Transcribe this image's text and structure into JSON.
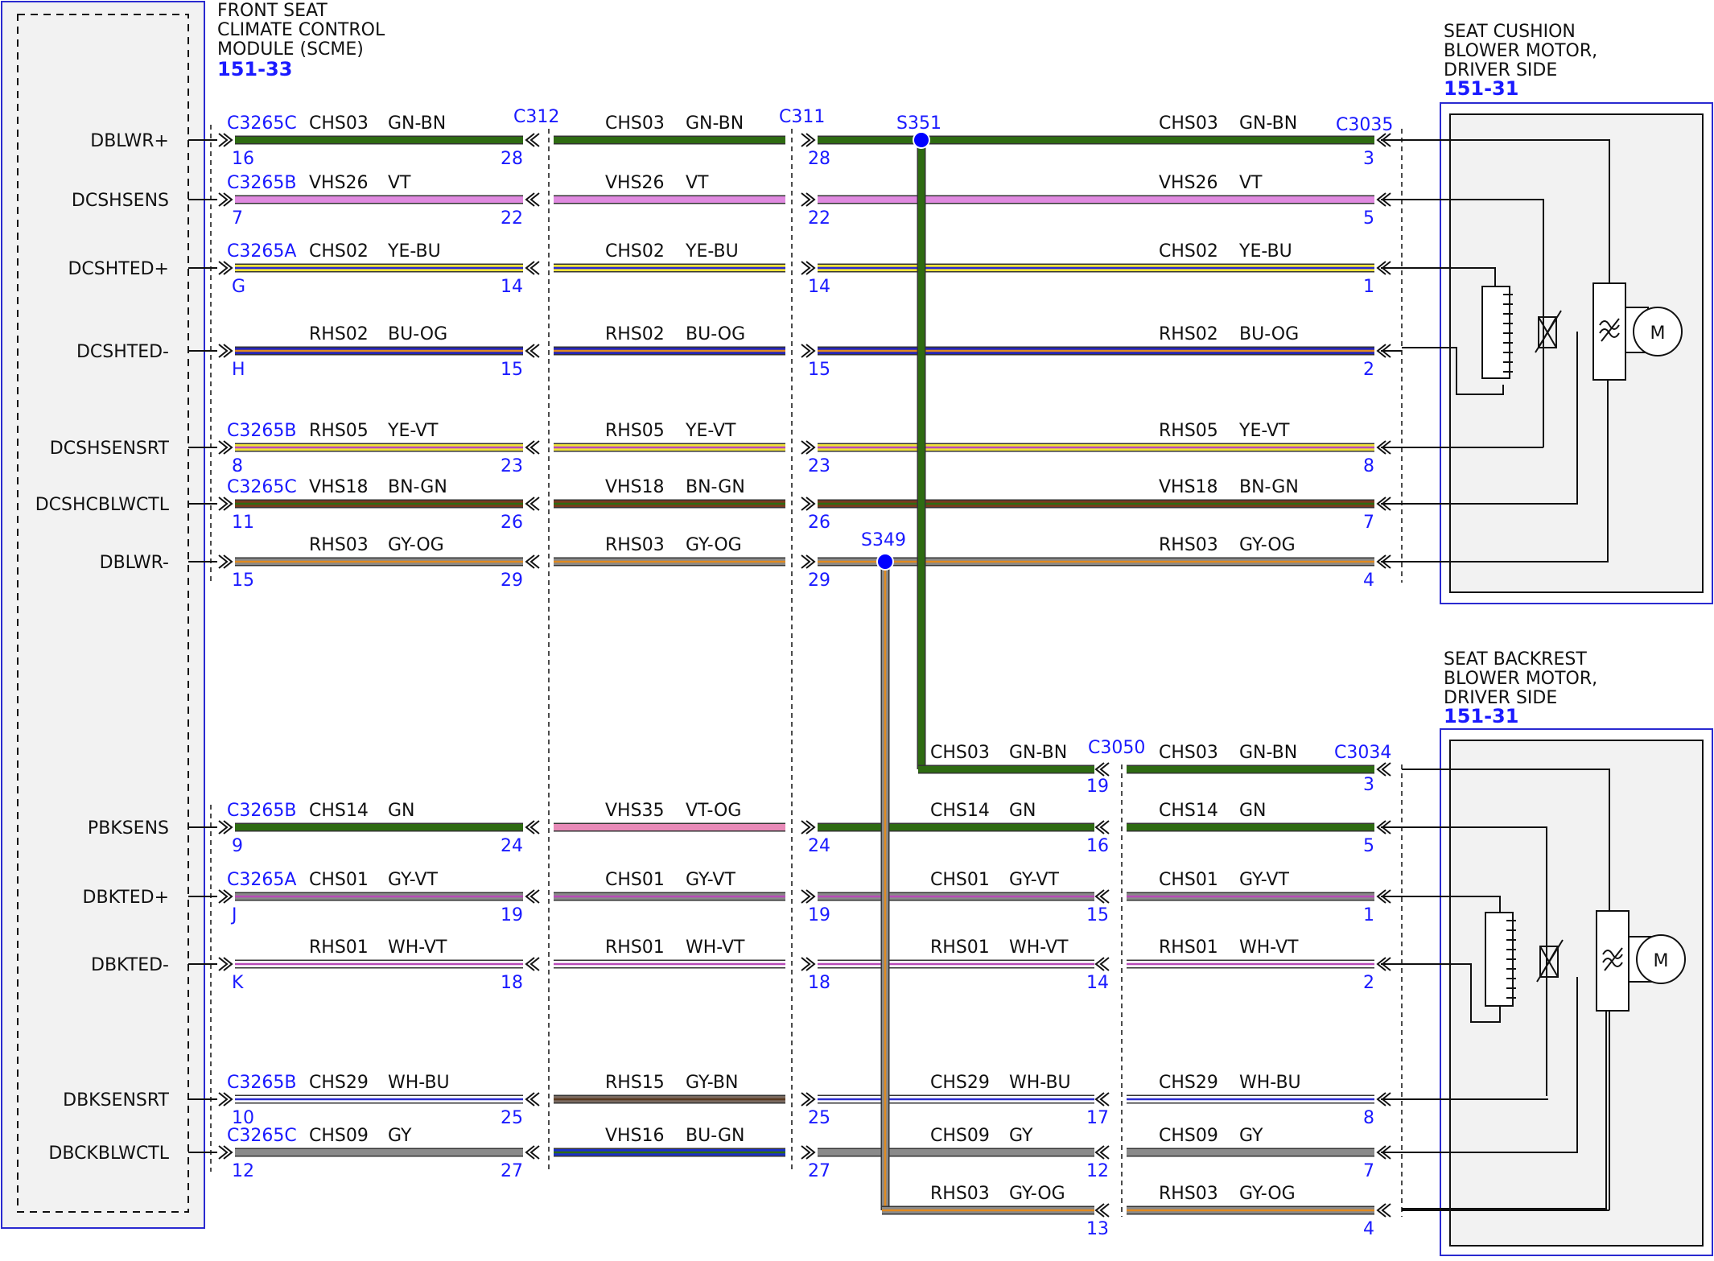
{
  "colors": {
    "GN-BN": [
      "#2e6b12",
      "#2e6b12"
    ],
    "VT": [
      "#e08ae0",
      "#e08ae0"
    ],
    "YE-BU": [
      "#f0e23a",
      "#2a2ad0"
    ],
    "BU-OG": [
      "#2424b8",
      "#e08a20"
    ],
    "YE-VT": [
      "#f0e23a",
      "#b84ab8"
    ],
    "BN-GN": [
      "#7a3a1e",
      "#2e6b12"
    ],
    "GY-OG": [
      "#8a8a8a",
      "#e08a20"
    ],
    "GN": [
      "#2e6b12",
      "#2e6b12"
    ],
    "VT-OG": [
      "#e88ab8",
      "#e88ab8"
    ],
    "GY-VT": [
      "#8a8a8a",
      "#b84ab8"
    ],
    "WH-VT": [
      "#ffffff",
      "#b84ab8"
    ],
    "WH-BU": [
      "#ffffff",
      "#2a2ad0"
    ],
    "GY-BN": [
      "#7a6a60",
      "#5a3a20"
    ],
    "GY": [
      "#8a8a8a",
      "#8a8a8a"
    ],
    "BU-GN": [
      "#1b2fc8",
      "#2e6b12"
    ],
    "splice": "#0000ff",
    "connector": "#1a1aff"
  },
  "scme": {
    "title_line1": "FRONT SEAT",
    "title_line2": "CLIMATE CONTROL",
    "title_line3": "MODULE (SCME)",
    "ref": "151-33",
    "pins": [
      "DBLWR+",
      "DCSHSENS",
      "DCSHTED+",
      "DCSHTED-",
      "DCSHSENSRT",
      "DCSHCBLWCTL",
      "DBLWR-",
      "PBKSENS",
      "DBKTED+",
      "DBKTED-",
      "DBKSENSRT",
      "DBCKBLWCTL"
    ]
  },
  "cushion": {
    "title_line1": "SEAT CUSHION",
    "title_line2": "BLOWER MOTOR,",
    "title_line3": "DRIVER SIDE",
    "ref": "151-31",
    "motor": "M"
  },
  "backrest": {
    "title_line1": "SEAT BACKREST",
    "title_line2": "BLOWER MOTOR,",
    "title_line3": "DRIVER SIDE",
    "ref": "151-31",
    "motor": "M"
  },
  "inline_connectors": [
    "C312",
    "C311",
    "C3035",
    "C3050",
    "C3034"
  ],
  "splices": [
    "S351",
    "S349"
  ],
  "rows": [
    {
      "conn": "C3265C",
      "pin": "16",
      "s1": {
        "circuit": "CHS03",
        "color": "GN-BN"
      },
      "p1": "28",
      "s2": {
        "circuit": "CHS03",
        "color": "GN-BN"
      },
      "p2": "28",
      "s3": {
        "circuit": "CHS03",
        "color": "GN-BN"
      },
      "endPin": "3"
    },
    {
      "conn": "C3265B",
      "pin": "7",
      "s1": {
        "circuit": "VHS26",
        "color": "VT"
      },
      "p1": "22",
      "s2": {
        "circuit": "VHS26",
        "color": "VT"
      },
      "p2": "22",
      "s3": {
        "circuit": "VHS26",
        "color": "VT"
      },
      "endPin": "5"
    },
    {
      "conn": "C3265A",
      "pin": "G",
      "s1": {
        "circuit": "CHS02",
        "color": "YE-BU"
      },
      "p1": "14",
      "s2": {
        "circuit": "CHS02",
        "color": "YE-BU"
      },
      "p2": "14",
      "s3": {
        "circuit": "CHS02",
        "color": "YE-BU"
      },
      "endPin": "1"
    },
    {
      "conn": "",
      "pin": "H",
      "s1": {
        "circuit": "RHS02",
        "color": "BU-OG"
      },
      "p1": "15",
      "s2": {
        "circuit": "RHS02",
        "color": "BU-OG"
      },
      "p2": "15",
      "s3": {
        "circuit": "RHS02",
        "color": "BU-OG"
      },
      "endPin": "2"
    },
    {
      "conn": "C3265B",
      "pin": "8",
      "s1": {
        "circuit": "RHS05",
        "color": "YE-VT"
      },
      "p1": "23",
      "s2": {
        "circuit": "RHS05",
        "color": "YE-VT"
      },
      "p2": "23",
      "s3": {
        "circuit": "RHS05",
        "color": "YE-VT"
      },
      "endPin": "8"
    },
    {
      "conn": "C3265C",
      "pin": "11",
      "s1": {
        "circuit": "VHS18",
        "color": "BN-GN"
      },
      "p1": "26",
      "s2": {
        "circuit": "VHS18",
        "color": "BN-GN"
      },
      "p2": "26",
      "s3": {
        "circuit": "VHS18",
        "color": "BN-GN"
      },
      "endPin": "7"
    },
    {
      "conn": "",
      "pin": "15",
      "s1": {
        "circuit": "RHS03",
        "color": "GY-OG"
      },
      "p1": "29",
      "s2": {
        "circuit": "RHS03",
        "color": "GY-OG"
      },
      "p2": "29",
      "s3": {
        "circuit": "RHS03",
        "color": "GY-OG"
      },
      "endPin": "4"
    },
    {
      "conn": "C3265B",
      "pin": "9",
      "s1": {
        "circuit": "CHS14",
        "color": "GN"
      },
      "p1": "24",
      "s2": {
        "circuit": "VHS35",
        "color": "VT-OG"
      },
      "p2": "24",
      "s3": {
        "circuit": "CHS14",
        "color": "GN"
      },
      "p3": "16",
      "s4": {
        "circuit": "CHS14",
        "color": "GN"
      },
      "endPin": "5"
    },
    {
      "conn": "C3265A",
      "pin": "J",
      "s1": {
        "circuit": "CHS01",
        "color": "GY-VT"
      },
      "p1": "19",
      "s2": {
        "circuit": "CHS01",
        "color": "GY-VT"
      },
      "p2": "19",
      "s3": {
        "circuit": "CHS01",
        "color": "GY-VT"
      },
      "p3": "15",
      "s4": {
        "circuit": "CHS01",
        "color": "GY-VT"
      },
      "endPin": "1"
    },
    {
      "conn": "",
      "pin": "K",
      "s1": {
        "circuit": "RHS01",
        "color": "WH-VT"
      },
      "p1": "18",
      "s2": {
        "circuit": "RHS01",
        "color": "WH-VT"
      },
      "p2": "18",
      "s3": {
        "circuit": "RHS01",
        "color": "WH-VT"
      },
      "p3": "14",
      "s4": {
        "circuit": "RHS01",
        "color": "WH-VT"
      },
      "endPin": "2"
    },
    {
      "conn": "C3265B",
      "pin": "10",
      "s1": {
        "circuit": "CHS29",
        "color": "WH-BU"
      },
      "p1": "25",
      "s2": {
        "circuit": "RHS15",
        "color": "GY-BN"
      },
      "p2": "25",
      "s3": {
        "circuit": "CHS29",
        "color": "WH-BU"
      },
      "p3": "17",
      "s4": {
        "circuit": "CHS29",
        "color": "WH-BU"
      },
      "endPin": "8"
    },
    {
      "conn": "C3265C",
      "pin": "12",
      "s1": {
        "circuit": "CHS09",
        "color": "GY"
      },
      "p1": "27",
      "s2": {
        "circuit": "VHS16",
        "color": "BU-GN"
      },
      "p2": "27",
      "s3": {
        "circuit": "CHS09",
        "color": "GY"
      },
      "p3": "12",
      "s4": {
        "circuit": "CHS09",
        "color": "GY"
      },
      "endPin": "7"
    }
  ],
  "branch_s351": {
    "s3": {
      "circuit": "CHS03",
      "color": "GN-BN"
    },
    "p3": "19",
    "s4": {
      "circuit": "CHS03",
      "color": "GN-BN"
    },
    "endPin": "3"
  },
  "branch_s349": {
    "s3": {
      "circuit": "RHS03",
      "color": "GY-OG"
    },
    "p3": "13",
    "s4": {
      "circuit": "RHS03",
      "color": "GY-OG"
    },
    "endPin": "4"
  }
}
